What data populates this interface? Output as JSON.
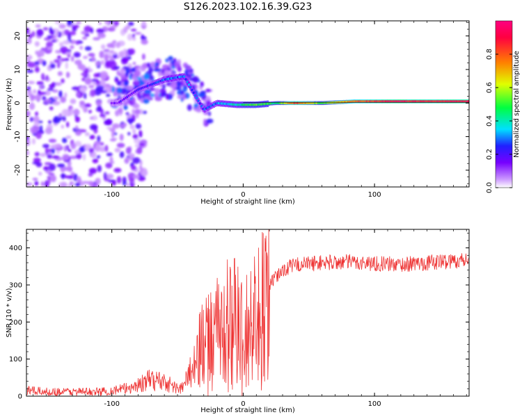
{
  "title": "S126.2023.102.16.39.G23",
  "chart_data": [
    {
      "type": "heatmap",
      "xlabel": "Height of straight line (km)",
      "ylabel": "Frequency (Hz)",
      "xlim": [
        -165,
        172
      ],
      "ylim": [
        -25,
        24.5
      ],
      "xticks": [
        -100,
        0,
        100
      ],
      "yticks": [
        -20,
        -10,
        0,
        10,
        20
      ],
      "colorbar": {
        "label": "Normalized spectral amplitude",
        "range": [
          0,
          1
        ],
        "ticks": [
          0.0,
          0.2,
          0.4,
          0.6,
          0.8
        ],
        "colors": [
          "#ffffff",
          "#cc99ff",
          "#7700ff",
          "#2020ff",
          "#00e0ff",
          "#00ff40",
          "#e0ff00",
          "#ff8000",
          "#ff0040",
          "#ff0080"
        ]
      },
      "ridge": [
        {
          "x": -95,
          "f": 0,
          "amp": 0.15
        },
        {
          "x": -80,
          "f": 4,
          "amp": 0.2
        },
        {
          "x": -60,
          "f": 7,
          "amp": 0.28
        },
        {
          "x": -45,
          "f": 8,
          "amp": 0.3
        },
        {
          "x": -30,
          "f": -2,
          "amp": 0.25
        },
        {
          "x": -20,
          "f": 0,
          "amp": 0.3
        },
        {
          "x": -5,
          "f": -0.5,
          "amp": 0.4
        },
        {
          "x": 10,
          "f": -0.5,
          "amp": 0.55
        },
        {
          "x": 25,
          "f": 0,
          "amp": 0.45
        },
        {
          "x": 40,
          "f": 0,
          "amp": 0.85
        },
        {
          "x": 60,
          "f": 0,
          "amp": 0.5
        },
        {
          "x": 85,
          "f": 0.5,
          "amp": 0.8
        },
        {
          "x": 110,
          "f": 0.5,
          "amp": 0.9
        },
        {
          "x": 140,
          "f": 0.5,
          "amp": 0.9
        },
        {
          "x": 170,
          "f": 0.5,
          "amp": 0.9
        }
      ]
    },
    {
      "type": "line",
      "xlabel": "Height of straight line (km)",
      "ylabel": "SNR (10 * v/v)",
      "xlim": [
        -165,
        172
      ],
      "ylim": [
        0,
        450
      ],
      "xticks": [
        -100,
        0,
        100
      ],
      "yticks": [
        0,
        100,
        200,
        300,
        400
      ],
      "color": "#ee3333",
      "series": [
        {
          "x": [
            -165,
            -150,
            -130,
            -110,
            -100,
            -90,
            -80,
            -70,
            -60,
            -50,
            -45,
            -40,
            -30,
            -20,
            -10,
            0,
            10,
            20,
            30,
            40,
            60,
            80,
            100,
            120,
            140,
            160,
            172
          ],
          "y": [
            15,
            12,
            12,
            12,
            15,
            20,
            30,
            45,
            40,
            20,
            25,
            80,
            160,
            200,
            230,
            200,
            250,
            300,
            340,
            355,
            360,
            362,
            358,
            355,
            360,
            365,
            368
          ]
        }
      ]
    }
  ]
}
